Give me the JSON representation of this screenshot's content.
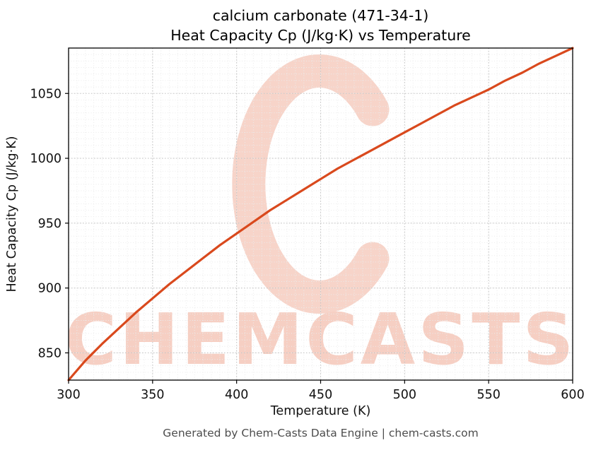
{
  "chart_data": {
    "type": "line",
    "title_line1": "calcium carbonate (471-34-1)",
    "title_line2": "Heat Capacity Cp (J/kg·K) vs Temperature",
    "xlabel": "Temperature (K)",
    "ylabel": "Heat Capacity Cp (J/kg·K)",
    "xlim": [
      300,
      600
    ],
    "ylim": [
      829,
      1085
    ],
    "xticks": [
      300,
      350,
      400,
      450,
      500,
      550,
      600
    ],
    "yticks": [
      850,
      900,
      950,
      1000,
      1050
    ],
    "x_minor_step": 5,
    "y_minor_step": 5,
    "grid": true,
    "legend": "none",
    "series": [
      {
        "name": "Heat Capacity Cp",
        "color": "#d9491d",
        "x": [
          300,
          310,
          320,
          330,
          340,
          350,
          360,
          370,
          380,
          390,
          400,
          410,
          420,
          430,
          440,
          450,
          460,
          470,
          480,
          490,
          500,
          510,
          520,
          530,
          540,
          550,
          560,
          570,
          580,
          590,
          600
        ],
        "y": [
          829,
          844,
          857,
          869,
          881,
          892,
          903,
          913,
          923,
          933,
          942,
          951,
          960,
          968,
          976,
          984,
          992,
          999,
          1006,
          1013,
          1020,
          1027,
          1034,
          1041,
          1047,
          1053,
          1060,
          1066,
          1073,
          1079,
          1085
        ]
      }
    ],
    "watermark_text": "CHEMCASTS",
    "watermark_color": "#f6cfc3",
    "watermark_logo": "c-swirl-icon"
  },
  "footer": {
    "text": "Generated by Chem-Casts Data Engine | chem-casts.com"
  }
}
